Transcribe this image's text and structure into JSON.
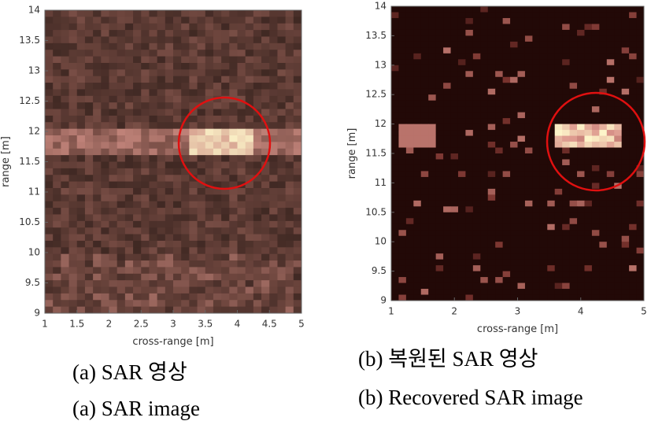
{
  "chart_data": [
    {
      "type": "image",
      "x_label": "cross-range [m]",
      "y_label": "range [m]",
      "xlim": [
        1,
        5
      ],
      "ylim": [
        9,
        14
      ],
      "xticks": [
        1,
        1.5,
        2,
        2.5,
        3,
        3.5,
        4,
        4.5,
        5
      ],
      "yticks": [
        9,
        9.5,
        10,
        10.5,
        11,
        11.5,
        12,
        12.5,
        13,
        13.5,
        14
      ],
      "captions": [
        "(a) SAR 영상",
        "(a) SAR image"
      ]
    },
    {
      "type": "image",
      "x_label": "cross-range [m]",
      "y_label": "range [m]",
      "xlim": [
        1,
        5
      ],
      "ylim": [
        9,
        14
      ],
      "xticks": [
        1,
        2,
        3,
        4,
        5
      ],
      "yticks": [
        9,
        9.5,
        10,
        10.5,
        11,
        11.5,
        12,
        12.5,
        13,
        13.5,
        14
      ],
      "captions": [
        "(b) 복원된 SAR 영상",
        "(b) Recovered SAR image"
      ]
    }
  ]
}
